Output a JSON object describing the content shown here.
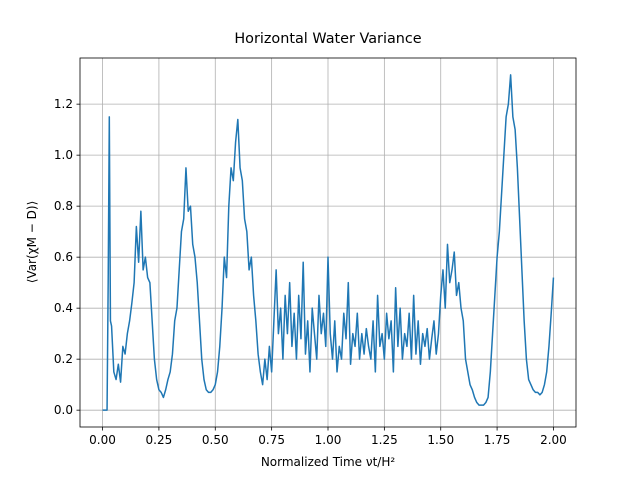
{
  "chart_data": {
    "type": "line",
    "title": "Horizontal Water Variance",
    "xlabel": "Normalized Time νt/H²",
    "ylabel": "⟨Var(χM − D)⟩",
    "xlim": [
      -0.1,
      2.1
    ],
    "ylim": [
      -0.066,
      1.381
    ],
    "xticks": [
      {
        "value": 0,
        "label": "0.00"
      },
      {
        "value": 0.25,
        "label": "0.25"
      },
      {
        "value": 0.5,
        "label": "0.50"
      },
      {
        "value": 0.75,
        "label": "0.75"
      },
      {
        "value": 1,
        "label": "1.00"
      },
      {
        "value": 1.25,
        "label": "1.25"
      },
      {
        "value": 1.5,
        "label": "1.50"
      },
      {
        "value": 1.75,
        "label": "1.75"
      },
      {
        "value": 2,
        "label": "2.00"
      }
    ],
    "yticks": [
      {
        "value": 0,
        "label": "0.0"
      },
      0.2,
      0.4,
      0.6,
      0.8,
      {
        "value": 1,
        "label": "1.0"
      },
      1.2
    ],
    "grid": true,
    "x": [
      0,
      0.01,
      0.02,
      0.025,
      0.03,
      0.035,
      0.04,
      0.05,
      0.06,
      0.07,
      0.08,
      0.09,
      0.1,
      0.11,
      0.12,
      0.13,
      0.14,
      0.15,
      0.16,
      0.17,
      0.18,
      0.19,
      0.2,
      0.21,
      0.22,
      0.23,
      0.24,
      0.25,
      0.26,
      0.27,
      0.28,
      0.29,
      0.3,
      0.31,
      0.32,
      0.33,
      0.34,
      0.35,
      0.36,
      0.37,
      0.38,
      0.39,
      0.4,
      0.41,
      0.42,
      0.43,
      0.44,
      0.45,
      0.46,
      0.47,
      0.48,
      0.49,
      0.5,
      0.51,
      0.52,
      0.53,
      0.54,
      0.55,
      0.56,
      0.57,
      0.58,
      0.59,
      0.6,
      0.61,
      0.62,
      0.63,
      0.64,
      0.65,
      0.66,
      0.67,
      0.68,
      0.69,
      0.7,
      0.71,
      0.72,
      0.73,
      0.74,
      0.75,
      0.76,
      0.77,
      0.78,
      0.79,
      0.8,
      0.81,
      0.82,
      0.83,
      0.84,
      0.85,
      0.86,
      0.87,
      0.88,
      0.89,
      0.9,
      0.91,
      0.92,
      0.93,
      0.94,
      0.95,
      0.96,
      0.97,
      0.98,
      0.99,
      1,
      1.01,
      1.02,
      1.03,
      1.04,
      1.05,
      1.06,
      1.07,
      1.08,
      1.09,
      1.1,
      1.11,
      1.12,
      1.13,
      1.14,
      1.15,
      1.16,
      1.17,
      1.18,
      1.19,
      1.2,
      1.21,
      1.22,
      1.23,
      1.24,
      1.25,
      1.26,
      1.27,
      1.28,
      1.29,
      1.3,
      1.31,
      1.32,
      1.33,
      1.34,
      1.35,
      1.36,
      1.37,
      1.38,
      1.39,
      1.4,
      1.41,
      1.42,
      1.43,
      1.44,
      1.45,
      1.46,
      1.47,
      1.48,
      1.49,
      1.5,
      1.51,
      1.52,
      1.53,
      1.54,
      1.55,
      1.56,
      1.57,
      1.58,
      1.59,
      1.6,
      1.61,
      1.62,
      1.63,
      1.64,
      1.65,
      1.66,
      1.67,
      1.68,
      1.69,
      1.7,
      1.71,
      1.72,
      1.73,
      1.74,
      1.75,
      1.76,
      1.77,
      1.78,
      1.79,
      1.8,
      1.81,
      1.82,
      1.83,
      1.84,
      1.85,
      1.86,
      1.87,
      1.88,
      1.89,
      1.9,
      1.91,
      1.92,
      1.93,
      1.94,
      1.95,
      1.96,
      1.97,
      1.98,
      1.99,
      2
    ],
    "series": [
      {
        "color": "#1f77b4",
        "values": [
          0,
          0,
          0,
          0.5,
          1.15,
          0.35,
          0.33,
          0.15,
          0.12,
          0.18,
          0.11,
          0.25,
          0.22,
          0.3,
          0.35,
          0.42,
          0.5,
          0.72,
          0.58,
          0.78,
          0.55,
          0.6,
          0.52,
          0.5,
          0.35,
          0.2,
          0.12,
          0.08,
          0.07,
          0.05,
          0.08,
          0.12,
          0.15,
          0.22,
          0.35,
          0.4,
          0.55,
          0.7,
          0.75,
          0.95,
          0.78,
          0.8,
          0.65,
          0.6,
          0.5,
          0.35,
          0.2,
          0.12,
          0.08,
          0.07,
          0.07,
          0.08,
          0.1,
          0.15,
          0.25,
          0.4,
          0.6,
          0.52,
          0.8,
          0.95,
          0.9,
          1.05,
          1.14,
          0.95,
          0.9,
          0.75,
          0.7,
          0.55,
          0.6,
          0.45,
          0.35,
          0.22,
          0.15,
          0.1,
          0.2,
          0.12,
          0.25,
          0.15,
          0.35,
          0.55,
          0.3,
          0.4,
          0.2,
          0.45,
          0.3,
          0.5,
          0.25,
          0.38,
          0.2,
          0.45,
          0.28,
          0.58,
          0.22,
          0.35,
          0.15,
          0.4,
          0.3,
          0.2,
          0.45,
          0.3,
          0.38,
          0.25,
          0.6,
          0.3,
          0.2,
          0.35,
          0.15,
          0.25,
          0.2,
          0.38,
          0.28,
          0.5,
          0.18,
          0.3,
          0.25,
          0.38,
          0.2,
          0.3,
          0.22,
          0.32,
          0.25,
          0.2,
          0.35,
          0.15,
          0.45,
          0.25,
          0.3,
          0.2,
          0.38,
          0.28,
          0.35,
          0.15,
          0.48,
          0.25,
          0.4,
          0.2,
          0.3,
          0.25,
          0.38,
          0.2,
          0.45,
          0.22,
          0.35,
          0.18,
          0.3,
          0.25,
          0.32,
          0.2,
          0.28,
          0.35,
          0.22,
          0.3,
          0.45,
          0.55,
          0.4,
          0.65,
          0.5,
          0.55,
          0.62,
          0.45,
          0.5,
          0.4,
          0.35,
          0.2,
          0.15,
          0.1,
          0.08,
          0.05,
          0.03,
          0.02,
          0.02,
          0.02,
          0.03,
          0.05,
          0.15,
          0.3,
          0.45,
          0.6,
          0.7,
          0.85,
          1,
          1.15,
          1.2,
          1.315,
          1.15,
          1.1,
          0.95,
          0.75,
          0.55,
          0.35,
          0.2,
          0.12,
          0.1,
          0.08,
          0.07,
          0.07,
          0.06,
          0.07,
          0.1,
          0.15,
          0.25,
          0.38,
          0.52
        ]
      }
    ]
  }
}
